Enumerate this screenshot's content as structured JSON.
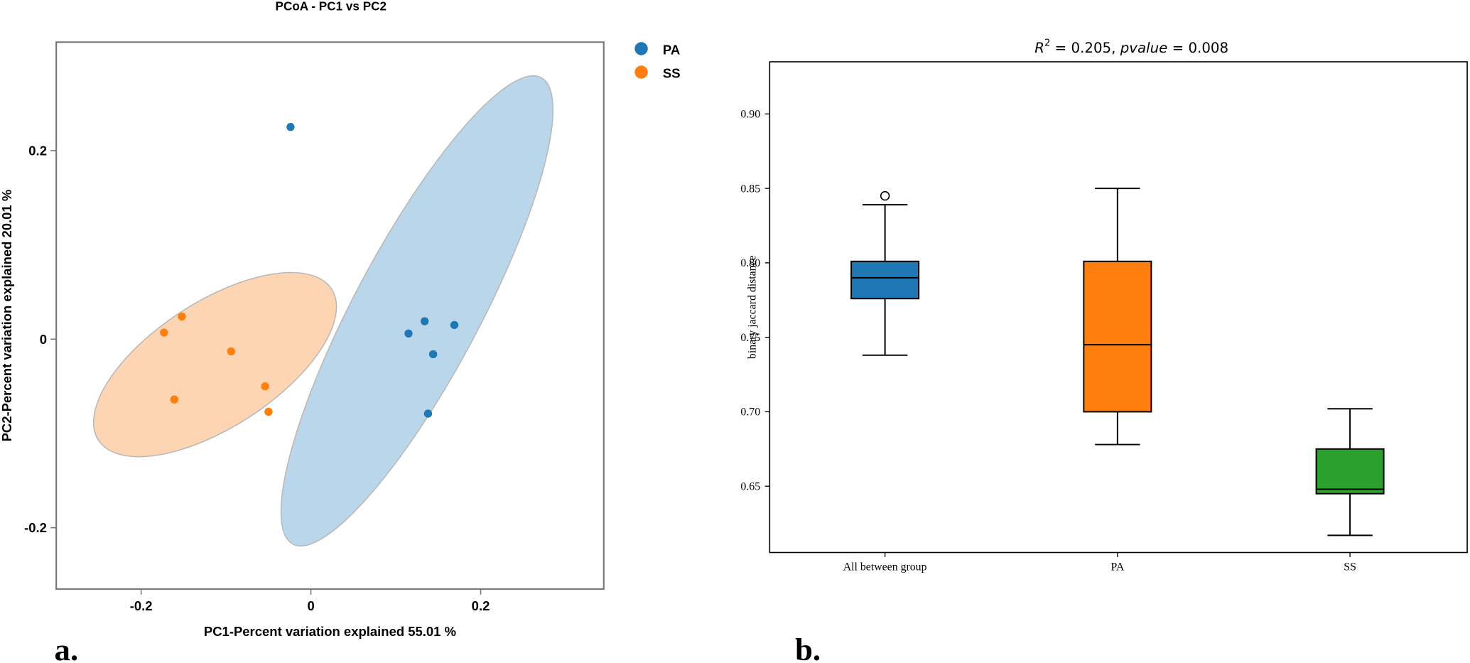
{
  "chart_data": [
    {
      "type": "scatter",
      "panel_label": "a.",
      "title": "PCoA - PC1 vs PC2",
      "xlabel": "PC1-Percent variation explained 55.01 %",
      "ylabel": "PC2-Percent variation explained 20.01 %",
      "xlim": [
        -0.3,
        0.345
      ],
      "ylim": [
        -0.265,
        0.315
      ],
      "xticks": [
        -0.2,
        0,
        0.2
      ],
      "xtick_labels": [
        "-0.2",
        "0",
        "0.2"
      ],
      "yticks": [
        -0.2,
        0,
        0.2
      ],
      "ytick_labels": [
        "-0.2",
        "0",
        "0.2"
      ],
      "grid": false,
      "legend_position": "right-top",
      "series": [
        {
          "name": "PA",
          "color": "#1f77b4",
          "ellipse_color": "#bad6ea",
          "points": [
            {
              "x": -0.024,
              "y": 0.225
            },
            {
              "x": 0.115,
              "y": 0.006
            },
            {
              "x": 0.134,
              "y": 0.019
            },
            {
              "x": 0.169,
              "y": 0.015
            },
            {
              "x": 0.144,
              "y": -0.016
            },
            {
              "x": 0.138,
              "y": -0.079
            }
          ],
          "ellipse": {
            "cx": 0.125,
            "cy": 0.03,
            "rx": 0.295,
            "ry": 0.07,
            "angle_deg": -62
          }
        },
        {
          "name": "SS",
          "color": "#ff7f0e",
          "ellipse_color": "#fdd5b3",
          "points": [
            {
              "x": -0.152,
              "y": 0.024
            },
            {
              "x": -0.173,
              "y": 0.007
            },
            {
              "x": -0.094,
              "y": -0.013
            },
            {
              "x": -0.054,
              "y": -0.05
            },
            {
              "x": -0.161,
              "y": -0.064
            },
            {
              "x": -0.05,
              "y": -0.077
            }
          ],
          "ellipse": {
            "cx": -0.113,
            "cy": -0.027,
            "rx": 0.155,
            "ry": 0.07,
            "angle_deg": -33
          }
        }
      ]
    },
    {
      "type": "box",
      "panel_label": "b.",
      "title": "R² = 0.205, pvalue = 0.008",
      "title_parts": {
        "r": "R",
        "sup": "2",
        "mid": " = 0.205, ",
        "p": "pvalue",
        "end": " = 0.008"
      },
      "xlabel": "",
      "ylabel": "binary jaccard distance",
      "categories": [
        "All between group",
        "PA",
        "SS"
      ],
      "ylim": [
        0.6055,
        0.935
      ],
      "yticks": [
        0.65,
        0.7,
        0.75,
        0.8,
        0.85,
        0.9
      ],
      "ytick_labels": [
        "0.65",
        "0.70",
        "0.75",
        "0.80",
        "0.85",
        "0.90"
      ],
      "grid": false,
      "boxes": [
        {
          "name": "All between group",
          "color": "#1f77b4",
          "whisker_low": 0.738,
          "q1": 0.776,
          "median": 0.79,
          "q3": 0.801,
          "whisker_high": 0.839,
          "outliers": [
            0.845
          ]
        },
        {
          "name": "PA",
          "color": "#ff7f0e",
          "whisker_low": 0.678,
          "q1": 0.7,
          "median": 0.745,
          "q3": 0.801,
          "whisker_high": 0.85,
          "outliers": []
        },
        {
          "name": "SS",
          "color": "#2ca02c",
          "whisker_low": 0.617,
          "q1": 0.645,
          "median": 0.648,
          "q3": 0.675,
          "whisker_high": 0.702,
          "outliers": []
        }
      ]
    }
  ]
}
